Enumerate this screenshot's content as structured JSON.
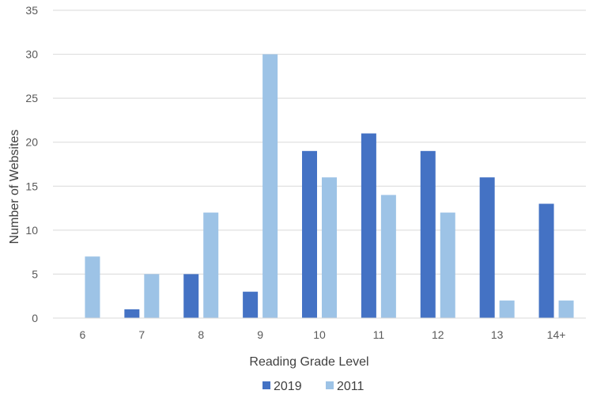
{
  "chart_data": {
    "type": "bar",
    "title": "",
    "xlabel": "Reading Grade Level",
    "ylabel": "Number of Websites",
    "categories": [
      "6",
      "7",
      "8",
      "9",
      "10",
      "11",
      "12",
      "13",
      "14+"
    ],
    "series": [
      {
        "name": "2019",
        "color": "#4472C4",
        "values": [
          0,
          1,
          5,
          3,
          19,
          21,
          19,
          16,
          13
        ]
      },
      {
        "name": "2011",
        "color": "#9DC3E6",
        "values": [
          7,
          5,
          12,
          30,
          16,
          14,
          12,
          2,
          2
        ]
      }
    ],
    "ylim": [
      0,
      35
    ],
    "yticks": [
      0,
      5,
      10,
      15,
      20,
      25,
      30,
      35
    ],
    "grid": true,
    "legend_position": "bottom"
  }
}
